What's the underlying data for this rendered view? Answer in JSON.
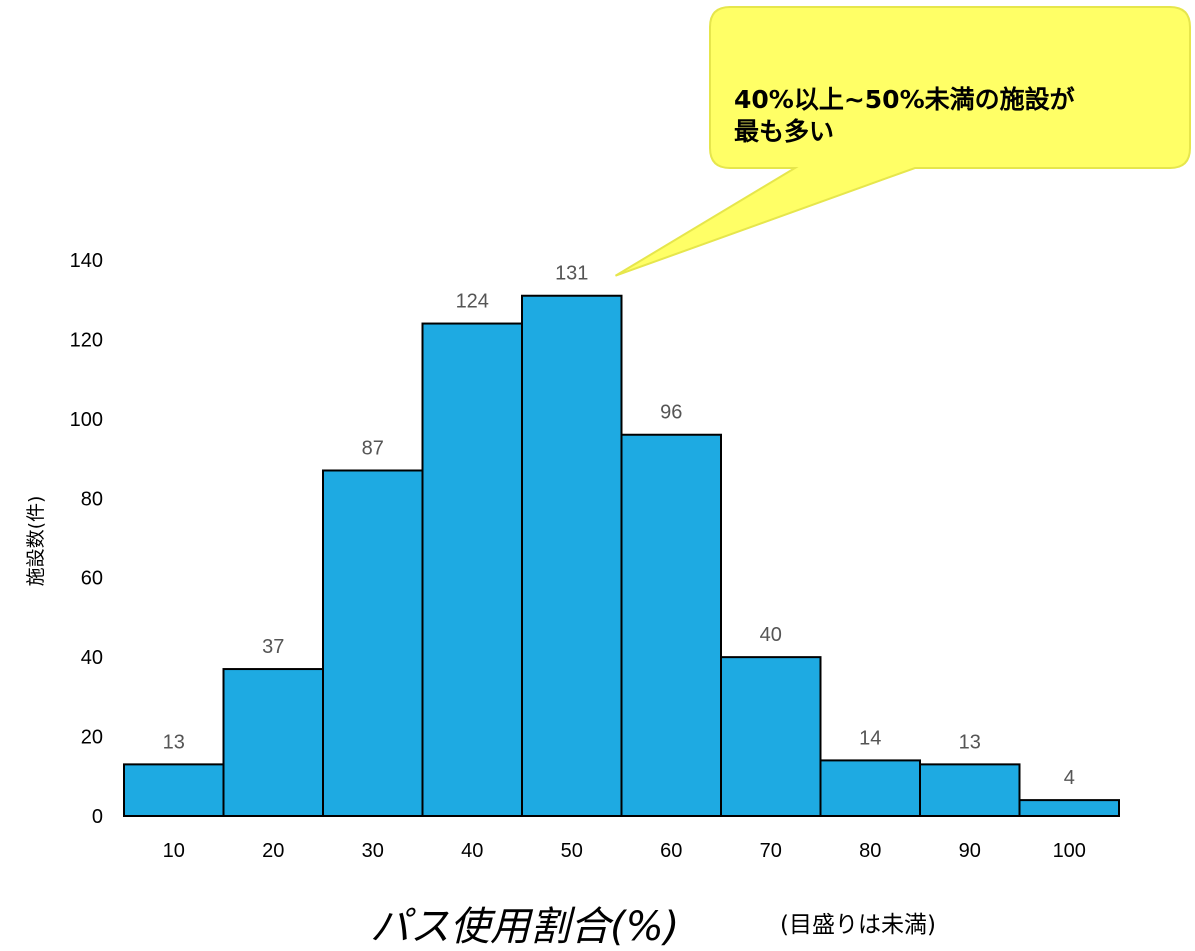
{
  "chart_data": {
    "type": "bar",
    "categories": [
      "10",
      "20",
      "30",
      "40",
      "50",
      "60",
      "70",
      "80",
      "90",
      "100"
    ],
    "values": [
      13,
      37,
      87,
      124,
      131,
      96,
      40,
      14,
      13,
      4
    ],
    "ylabel": "施設数(件)",
    "xlabel": "パス使用割合(%)",
    "xlabel_note": "(目盛りは未満)",
    "yticks": [
      0,
      20,
      40,
      60,
      80,
      100,
      120,
      140
    ],
    "ylim": [
      0,
      140
    ],
    "bar_color": "#1eaae2",
    "grid": false,
    "annotation": {
      "lines": [
        "40%以上~50%未満の施設が",
        "最も多い"
      ],
      "target_category": "50",
      "fill_color": "#ffff66",
      "border_color": "#e6e64c"
    }
  }
}
